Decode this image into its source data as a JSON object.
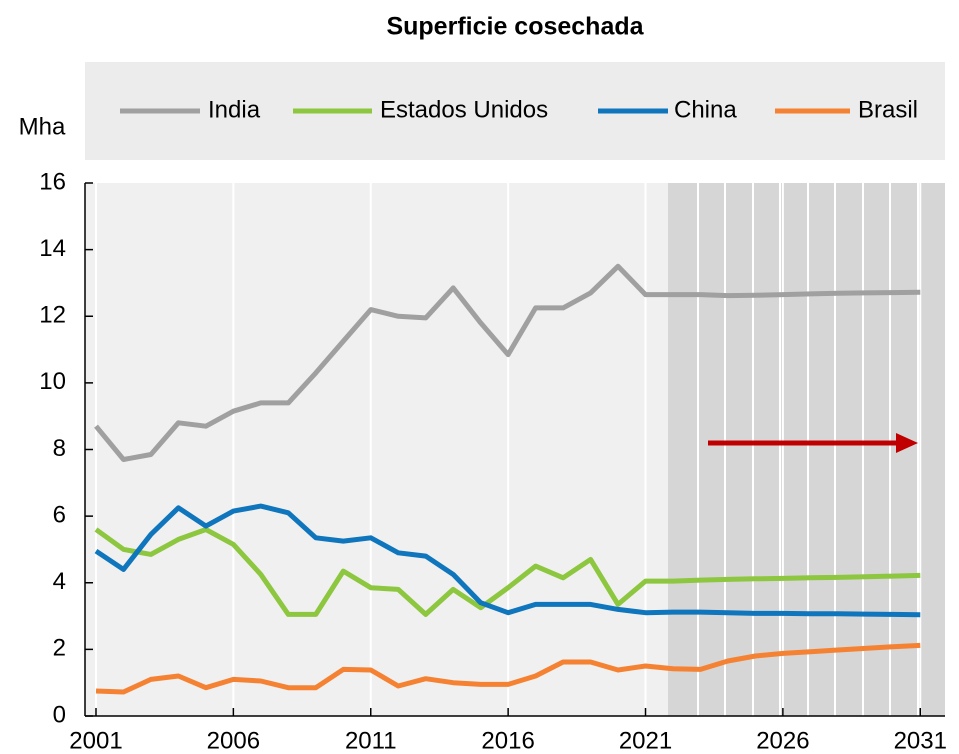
{
  "chart_data": {
    "type": "line",
    "title": "Superficie cosechada",
    "y_label": "Mha",
    "x": [
      2001,
      2002,
      2003,
      2004,
      2005,
      2006,
      2007,
      2008,
      2009,
      2010,
      2011,
      2012,
      2013,
      2014,
      2015,
      2016,
      2017,
      2018,
      2019,
      2020,
      2021,
      2022,
      2023,
      2024,
      2025,
      2026,
      2027,
      2028,
      2029,
      2030,
      2031
    ],
    "series": [
      {
        "name": "India",
        "color": "#a0a0a0",
        "values": [
          8.7,
          7.7,
          7.85,
          8.8,
          8.7,
          9.15,
          9.4,
          9.4,
          10.3,
          11.25,
          12.2,
          12.0,
          11.95,
          12.85,
          11.8,
          10.85,
          12.25,
          12.25,
          12.7,
          13.5,
          12.65,
          12.65,
          12.65,
          12.62,
          12.63,
          12.65,
          12.67,
          12.69,
          12.7,
          12.71,
          12.72
        ]
      },
      {
        "name": "Estados Unidos",
        "color": "#8dc63f",
        "values": [
          5.6,
          5.0,
          4.85,
          5.3,
          5.6,
          5.15,
          4.25,
          3.05,
          3.05,
          4.35,
          3.85,
          3.8,
          3.05,
          3.8,
          3.25,
          3.85,
          4.5,
          4.15,
          4.7,
          3.35,
          4.05,
          4.05,
          4.08,
          4.1,
          4.12,
          4.13,
          4.15,
          4.16,
          4.18,
          4.2,
          4.22
        ]
      },
      {
        "name": "China",
        "color": "#0f75bc",
        "values": [
          4.95,
          4.4,
          5.45,
          6.25,
          5.7,
          6.15,
          6.3,
          6.1,
          5.35,
          5.25,
          5.35,
          4.9,
          4.8,
          4.25,
          3.4,
          3.1,
          3.35,
          3.35,
          3.35,
          3.2,
          3.1,
          3.12,
          3.12,
          3.1,
          3.08,
          3.08,
          3.07,
          3.07,
          3.06,
          3.05,
          3.04
        ]
      },
      {
        "name": "Brasil",
        "color": "#f58232",
        "values": [
          0.75,
          0.72,
          1.1,
          1.2,
          0.85,
          1.1,
          1.05,
          0.85,
          0.85,
          1.4,
          1.38,
          0.9,
          1.12,
          1.0,
          0.95,
          0.95,
          1.2,
          1.62,
          1.62,
          1.38,
          1.5,
          1.42,
          1.4,
          1.65,
          1.8,
          1.88,
          1.93,
          1.98,
          2.03,
          2.08,
          2.12
        ]
      }
    ],
    "xlim": [
      2000.6,
      2031.9
    ],
    "xticks": [
      2001,
      2006,
      2011,
      2016,
      2021,
      2026,
      2031
    ],
    "ylim": [
      0,
      16
    ],
    "yticks": [
      0,
      2,
      4,
      6,
      8,
      10,
      12,
      14,
      16
    ]
  }
}
